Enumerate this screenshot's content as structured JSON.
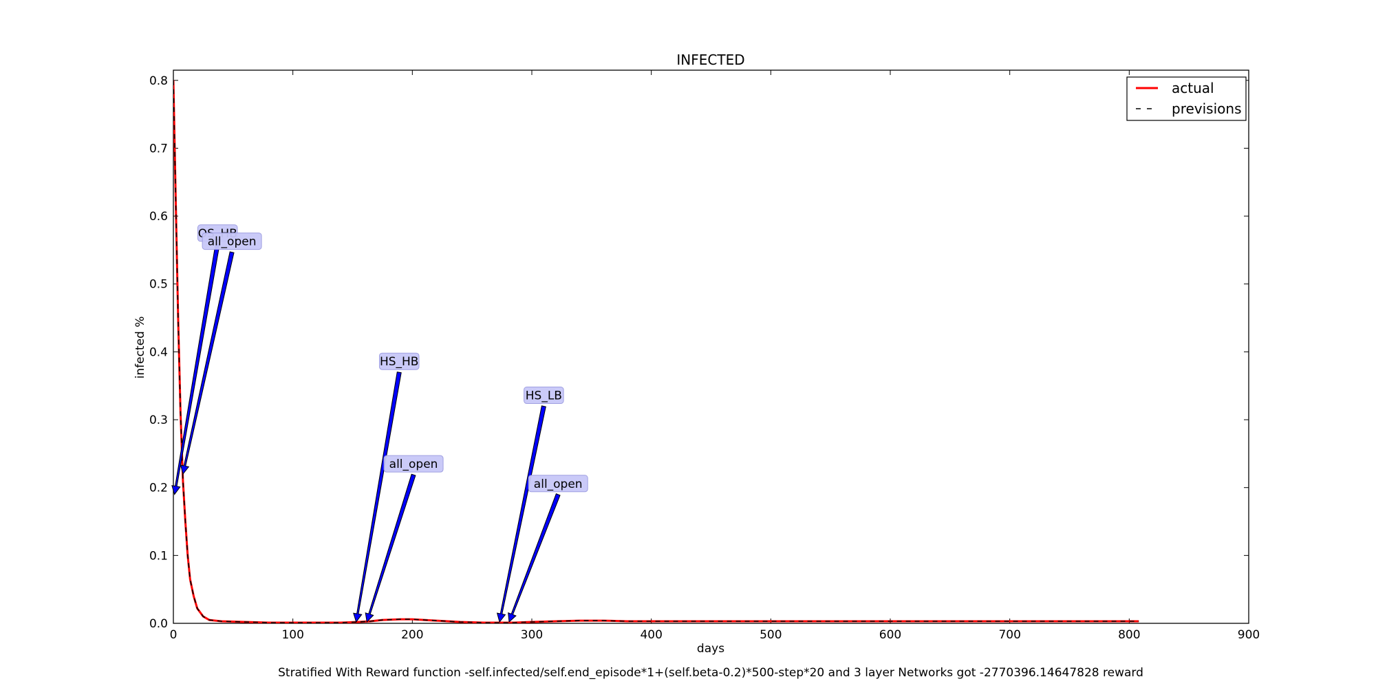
{
  "chart_data": {
    "type": "line",
    "title": "INFECTED",
    "xlabel": "days",
    "ylabel": "infected %",
    "caption": "Stratified With Reward function -self.infected/self.end_episode*1+(self.beta-0.2)*500-step*20 and 3 layer Networks got -2770396.14647828 reward",
    "xlim": [
      0,
      900
    ],
    "ylim": [
      0,
      0.815
    ],
    "xticks": [
      0,
      100,
      200,
      300,
      400,
      500,
      600,
      700,
      800,
      900
    ],
    "yticks": [
      0.0,
      0.1,
      0.2,
      0.3,
      0.4,
      0.5,
      0.6,
      0.7,
      0.8
    ],
    "grid": false,
    "legend_position": "top-right",
    "series": [
      {
        "name": "actual",
        "style": "solid",
        "color": "#ff0000",
        "x": [
          0,
          2,
          4,
          6,
          8,
          10,
          12,
          14,
          17,
          20,
          25,
          30,
          40,
          60,
          80,
          100,
          120,
          140,
          155,
          165,
          175,
          190,
          200,
          220,
          240,
          260,
          275,
          285,
          300,
          320,
          340,
          360,
          380,
          400,
          500,
          600,
          700,
          808
        ],
        "y": [
          0.8,
          0.62,
          0.45,
          0.31,
          0.21,
          0.15,
          0.1,
          0.065,
          0.04,
          0.022,
          0.01,
          0.005,
          0.003,
          0.002,
          0.001,
          0.001,
          0.001,
          0.001,
          0.002,
          0.003,
          0.005,
          0.006,
          0.006,
          0.004,
          0.002,
          0.001,
          0.001,
          0.001,
          0.002,
          0.003,
          0.004,
          0.004,
          0.003,
          0.003,
          0.003,
          0.003,
          0.003,
          0.003
        ]
      },
      {
        "name": "previsions",
        "style": "dashed",
        "color": "#000000",
        "x": [
          0,
          2,
          4,
          6,
          8,
          10,
          12,
          14,
          17,
          20,
          25,
          30,
          40,
          60,
          80,
          100,
          120,
          140,
          155,
          165,
          175,
          190,
          200,
          220,
          240,
          260,
          275,
          285,
          300,
          320,
          340,
          360,
          380,
          400,
          500,
          600,
          700,
          808
        ],
        "y": [
          0.8,
          0.62,
          0.45,
          0.31,
          0.21,
          0.15,
          0.1,
          0.065,
          0.04,
          0.022,
          0.01,
          0.005,
          0.003,
          0.002,
          0.001,
          0.001,
          0.001,
          0.001,
          0.002,
          0.003,
          0.005,
          0.006,
          0.006,
          0.004,
          0.002,
          0.001,
          0.001,
          0.001,
          0.002,
          0.003,
          0.004,
          0.004,
          0.003,
          0.003,
          0.003,
          0.003,
          0.003,
          0.003
        ]
      }
    ],
    "annotations": [
      {
        "text": "OS_HB",
        "target": [
          1,
          0.19
        ],
        "label_at": [
          37,
          0.575
        ]
      },
      {
        "text": "all_open",
        "target": [
          8,
          0.22
        ],
        "label_at": [
          49,
          0.563
        ]
      },
      {
        "text": "HS_HB",
        "target": [
          153,
          0.002
        ],
        "label_at": [
          189,
          0.386
        ]
      },
      {
        "text": "all_open",
        "target": [
          162,
          0.002
        ],
        "label_at": [
          201,
          0.235
        ]
      },
      {
        "text": "HS_LB",
        "target": [
          273,
          0.002
        ],
        "label_at": [
          310,
          0.336
        ]
      },
      {
        "text": "all_open",
        "target": [
          281,
          0.002
        ],
        "label_at": [
          322,
          0.206
        ]
      }
    ]
  }
}
